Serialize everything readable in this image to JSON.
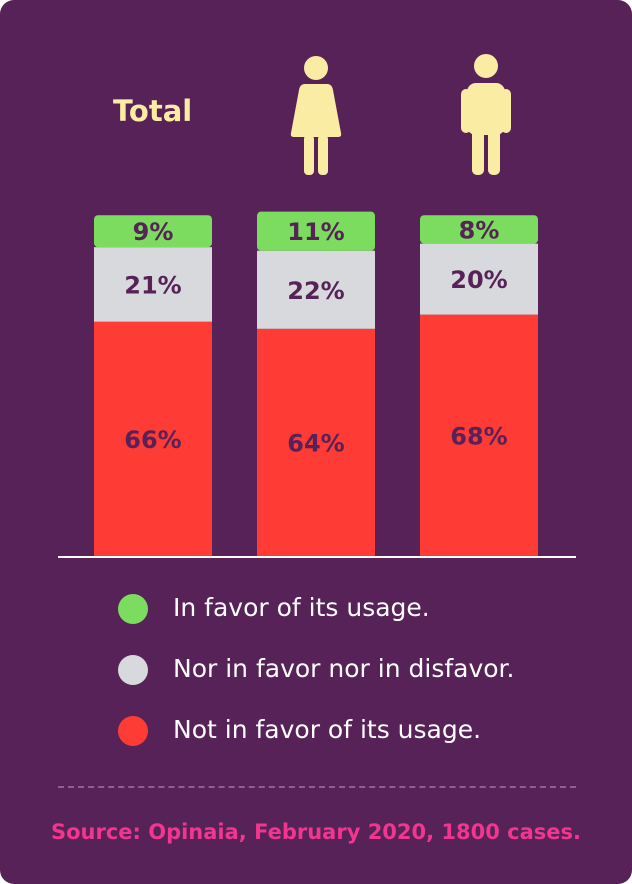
{
  "colors": {
    "background": "#572257",
    "in_favor": "#7bdc5f",
    "neutral": "#d8d9dd",
    "not_in_favor": "#ff3b36",
    "label_text": "#572257",
    "icon": "#fbeca3",
    "source_text": "#f2358f"
  },
  "icons": {
    "female": "female-person-icon",
    "male": "male-person-icon"
  },
  "chart_data": {
    "type": "bar",
    "stacked": true,
    "categories": [
      "Total",
      "Female",
      "Male"
    ],
    "category_labels": {
      "total": "Total"
    },
    "ylim": [
      0,
      100
    ],
    "series": [
      {
        "name": "Not in favor of its usage.",
        "values": [
          66,
          64,
          68
        ],
        "labels": [
          "66%",
          "64%",
          "68%"
        ]
      },
      {
        "name": "Nor in favor nor in disfavor.",
        "values": [
          21,
          22,
          20
        ],
        "labels": [
          "21%",
          "22%",
          "20%"
        ]
      },
      {
        "name": "In favor of its usage.",
        "values": [
          9,
          11,
          8
        ],
        "labels": [
          "9%",
          "11%",
          "8%"
        ]
      }
    ],
    "legend": [
      {
        "label": "In favor of its usage.",
        "color": "#7bdc5f"
      },
      {
        "label": "Nor in favor nor in disfavor.",
        "color": "#d8d9dd"
      },
      {
        "label": "Not in favor of its usage.",
        "color": "#ff3b36"
      }
    ],
    "legend_position": "bottom"
  },
  "source": "Source: Opinaia, February 2020, 1800 cases."
}
